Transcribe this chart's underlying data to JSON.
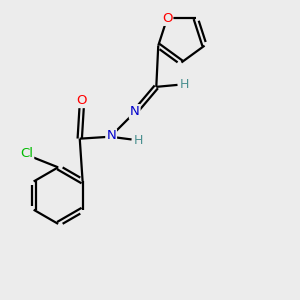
{
  "background_color": "#ececec",
  "bond_color": "#000000",
  "atom_colors": {
    "O": "#ff0000",
    "N": "#0000cc",
    "Cl": "#00bb00",
    "H": "#4a9090",
    "C": "#000000"
  },
  "figsize": [
    3.0,
    3.0
  ],
  "dpi": 100,
  "xlim": [
    0.0,
    7.0
  ],
  "ylim": [
    0.0,
    7.5
  ]
}
